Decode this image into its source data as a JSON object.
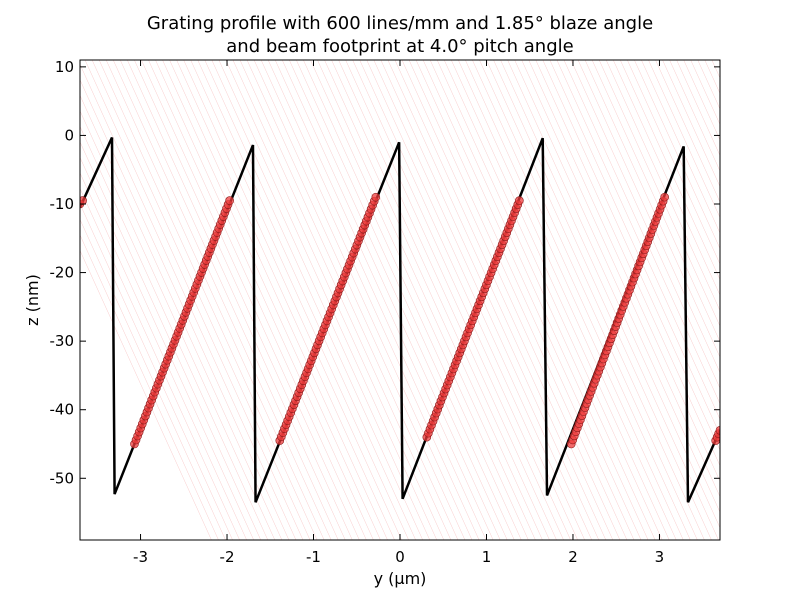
{
  "chart_data": {
    "type": "line",
    "title_lines": [
      "Grating profile with 600 lines/mm and 1.85° blaze angle",
      "and beam footprint at 4.0° pitch angle"
    ],
    "xlabel": "y (µm)",
    "ylabel": "z (nm)",
    "xlim": [
      -3.7,
      3.7
    ],
    "ylim": [
      -59,
      11
    ],
    "xticks": [
      -3,
      -2,
      -1,
      0,
      1,
      2,
      3
    ],
    "yticks": [
      10,
      0,
      -10,
      -20,
      -30,
      -40,
      -50
    ],
    "grid": false,
    "series": [
      {
        "kind": "profile",
        "color": "#000000",
        "x": [
          -3.7,
          -3.33,
          -3.3,
          -1.7,
          -1.67,
          -0.01,
          0.03,
          1.65,
          1.7,
          3.28,
          3.33,
          3.7
        ],
        "y": [
          -10.5,
          -0.3,
          -52.3,
          -1.4,
          -53.5,
          -1.0,
          -53.0,
          -0.4,
          -52.5,
          -1.6,
          -53.5,
          -43.0
        ]
      },
      {
        "kind": "footprint",
        "color": "#ee3b3b",
        "segments": [
          {
            "x0": -3.7,
            "y0": -10.0,
            "x1": -3.67,
            "y1": -9.5
          },
          {
            "x0": -3.07,
            "y0": -45.0,
            "x1": -1.97,
            "y1": -9.5
          },
          {
            "x0": -1.39,
            "y0": -44.5,
            "x1": -0.28,
            "y1": -9.0
          },
          {
            "x0": 0.31,
            "y0": -44.0,
            "x1": 1.38,
            "y1": -9.5
          },
          {
            "x0": 1.98,
            "y0": -45.0,
            "x1": 3.06,
            "y1": -9.0
          },
          {
            "x0": 3.65,
            "y0": -44.5,
            "x1": 3.7,
            "y1": -43.0
          }
        ]
      }
    ],
    "rays": {
      "color": "#f4a0a0",
      "description_free": true,
      "slope": -5.0,
      "count": 140
    }
  }
}
